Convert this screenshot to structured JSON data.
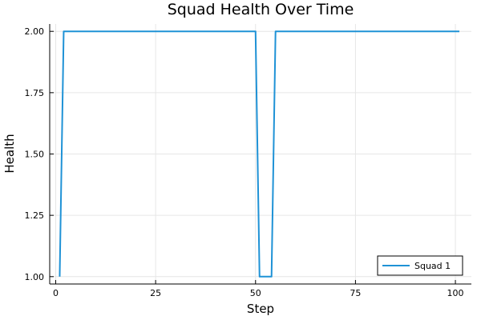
{
  "chart_data": {
    "type": "line",
    "title": "Squad Health Over Time",
    "xlabel": "Step",
    "ylabel": "Health",
    "xlim": [
      -1.5,
      104
    ],
    "ylim": [
      0.97,
      2.03
    ],
    "xticks": [
      0,
      25,
      50,
      75,
      100
    ],
    "xtick_labels": [
      "0",
      "25",
      "50",
      "75",
      "100"
    ],
    "yticks": [
      1.0,
      1.25,
      1.5,
      1.75,
      2.0
    ],
    "ytick_labels": [
      "1.00",
      "1.25",
      "1.50",
      "1.75",
      "2.00"
    ],
    "grid": true,
    "legend_position": "bottom-right",
    "series": [
      {
        "name": "Squad 1",
        "color": "#1f92d6",
        "x": [
          1,
          2,
          50,
          51,
          54,
          55,
          101
        ],
        "y": [
          1,
          2,
          2,
          1,
          1,
          2,
          2
        ]
      }
    ]
  }
}
